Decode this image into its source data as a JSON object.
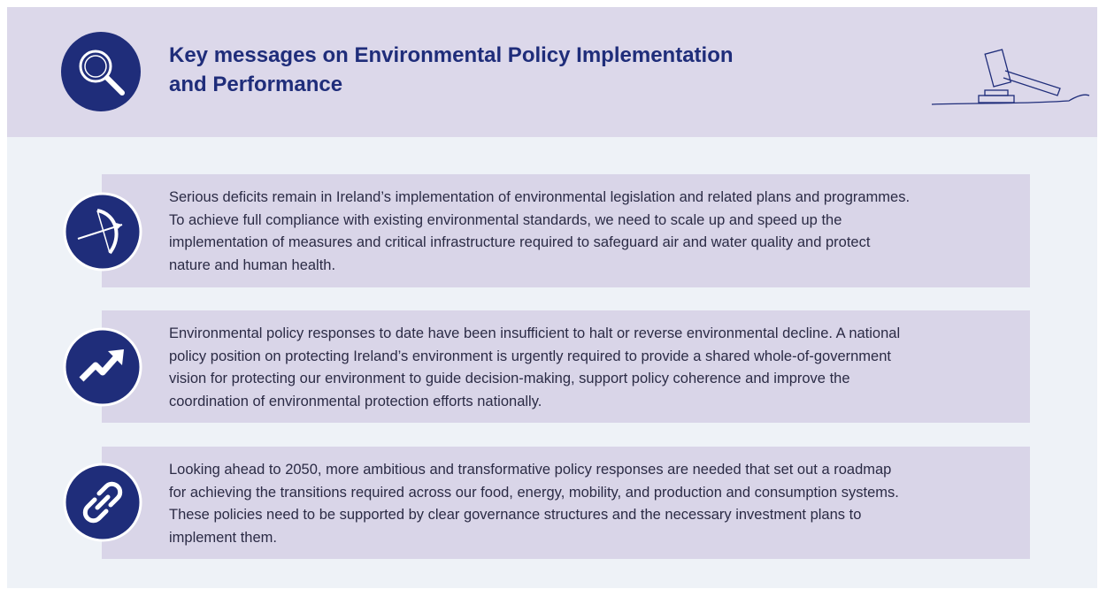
{
  "header": {
    "title": [
      "Key messages on Environmental Policy Implementation",
      "and Performance"
    ]
  },
  "messages": [
    {
      "lines": [
        "Serious deficits remain in Ireland’s implementation of environmental legislation and related plans and programmes.",
        "To achieve full compliance with existing environmental standards, we need to scale up and speed up the",
        "implementation of measures and critical infrastructure required to safeguard air and water quality and protect",
        "nature and human health."
      ]
    },
    {
      "lines": [
        "Environmental policy responses to date have been insufficient to halt or reverse environmental decline. A national",
        "policy position on protecting Ireland’s environment is urgently required to provide a shared whole-of-government",
        "vision for protecting our environment to guide decision-making, support policy coherence and improve the",
        "coordination of environmental protection efforts nationally."
      ]
    },
    {
      "lines": [
        "Looking ahead to 2050, more ambitious and transformative policy responses are needed that set out a roadmap",
        "for achieving the transitions required across our food, energy, mobility, and production and consumption systems.",
        "These policies need to be supported by clear governance structures and the necessary investment plans to",
        "implement them."
      ]
    }
  ]
}
